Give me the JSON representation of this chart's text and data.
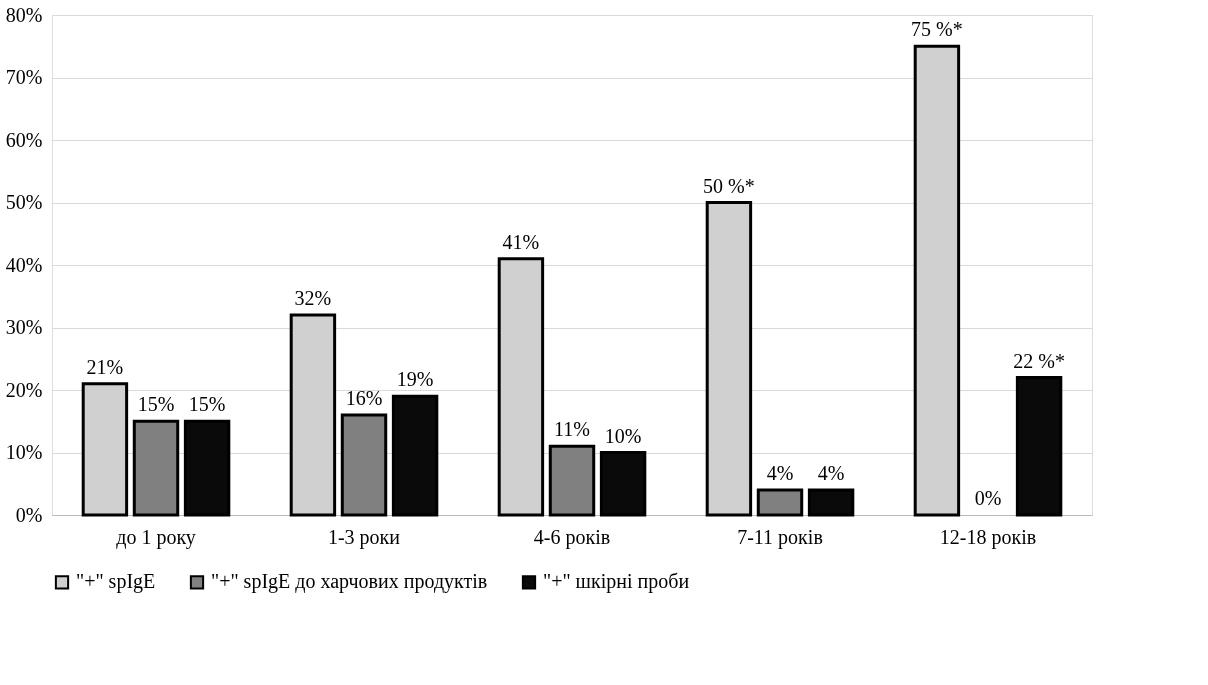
{
  "chart_data": {
    "type": "bar",
    "categories": [
      "до 1 року",
      "1-3 роки",
      "4-6 років",
      "7-11 років",
      "12-18 років"
    ],
    "series": [
      {
        "name": "\"+\" spIgE",
        "color": "#d0d0d0",
        "values": [
          21,
          32,
          41,
          50,
          75
        ],
        "value_labels": [
          "21%",
          "32%",
          "41%",
          "50 %*",
          "75 %*"
        ]
      },
      {
        "name": "\"+\" spIgE до харчових продуктів",
        "color": "#808080",
        "values": [
          15,
          16,
          11,
          4,
          0
        ],
        "value_labels": [
          "15%",
          "16%",
          "11%",
          "4%",
          "0%"
        ]
      },
      {
        "name": "\"+\" шкірні проби",
        "color": "#0a0a0a",
        "values": [
          15,
          19,
          10,
          4,
          22
        ],
        "value_labels": [
          "15%",
          "19%",
          "10%",
          "4%",
          "22 %*"
        ]
      }
    ],
    "ylim": [
      0,
      80
    ],
    "yticks": [
      {
        "value": 0,
        "label": "0%"
      },
      {
        "value": 10,
        "label": "10%"
      },
      {
        "value": 20,
        "label": "20%"
      },
      {
        "value": 30,
        "label": "30%"
      },
      {
        "value": 40,
        "label": "40%"
      },
      {
        "value": 50,
        "label": "50%"
      },
      {
        "value": 60,
        "label": "60%"
      },
      {
        "value": 70,
        "label": "70%"
      },
      {
        "value": 80,
        "label": "80%"
      }
    ],
    "grid": "y",
    "legend": "bottom"
  }
}
